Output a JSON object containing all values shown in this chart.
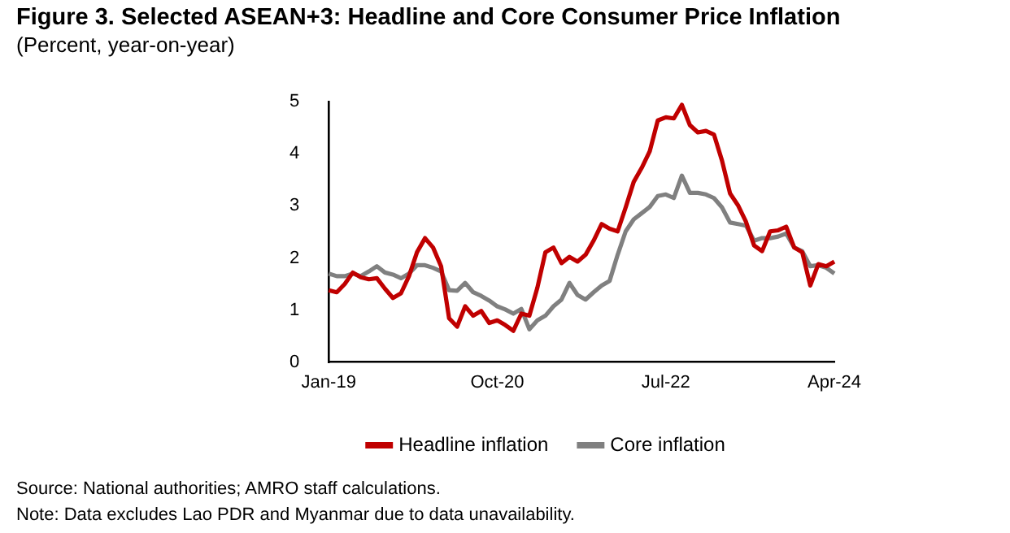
{
  "chart_data": {
    "type": "line",
    "title": "Figure 3. Selected ASEAN+3: Headline and Core Consumer Price Inflation",
    "subtitle": "(Percent, year-on-year)",
    "categories": [
      "Jan-19",
      null,
      null,
      null,
      null,
      null,
      null,
      null,
      null,
      null,
      null,
      null,
      null,
      null,
      null,
      null,
      null,
      null,
      null,
      null,
      null,
      "Oct-20",
      null,
      null,
      null,
      null,
      null,
      null,
      null,
      null,
      null,
      null,
      null,
      null,
      null,
      null,
      null,
      null,
      null,
      null,
      null,
      null,
      "Jul-22",
      null,
      null,
      null,
      null,
      null,
      null,
      null,
      null,
      null,
      null,
      null,
      null,
      null,
      null,
      null,
      null,
      null,
      null,
      null,
      null,
      "Apr-24"
    ],
    "series": [
      {
        "name": "Headline inflation",
        "color": "#c00000",
        "values": [
          1.38,
          1.34,
          1.5,
          1.72,
          1.63,
          1.59,
          1.61,
          1.41,
          1.23,
          1.32,
          1.65,
          2.11,
          2.38,
          2.2,
          1.84,
          0.84,
          0.68,
          1.07,
          0.89,
          0.98,
          0.75,
          0.8,
          0.71,
          0.6,
          0.93,
          0.89,
          1.43,
          2.11,
          2.2,
          1.9,
          2.02,
          1.93,
          2.06,
          2.33,
          2.65,
          2.56,
          2.51,
          2.97,
          3.46,
          3.73,
          4.05,
          4.64,
          4.7,
          4.68,
          4.94,
          4.55,
          4.41,
          4.44,
          4.37,
          3.87,
          3.24,
          3.01,
          2.69,
          2.24,
          2.13,
          2.51,
          2.53,
          2.6,
          2.2,
          2.11,
          1.47,
          1.88,
          1.84,
          1.93
        ]
      },
      {
        "name": "Core inflation",
        "color": "#808080",
        "values": [
          1.7,
          1.65,
          1.65,
          1.7,
          1.65,
          1.74,
          1.84,
          1.72,
          1.68,
          1.61,
          1.7,
          1.86,
          1.86,
          1.81,
          1.74,
          1.38,
          1.37,
          1.52,
          1.34,
          1.27,
          1.18,
          1.07,
          1.01,
          0.93,
          1.02,
          0.63,
          0.8,
          0.89,
          1.07,
          1.2,
          1.52,
          1.29,
          1.2,
          1.34,
          1.47,
          1.56,
          2.06,
          2.51,
          2.74,
          2.86,
          2.98,
          3.19,
          3.22,
          3.15,
          3.58,
          3.25,
          3.25,
          3.22,
          3.15,
          2.97,
          2.68,
          2.65,
          2.62,
          2.33,
          2.38,
          2.38,
          2.41,
          2.47,
          2.2,
          2.13,
          1.84,
          1.86,
          1.81,
          1.7
        ]
      }
    ],
    "ylim": [
      0,
      5
    ],
    "yticks": [
      0,
      1,
      2,
      3,
      4,
      5
    ],
    "grid": false,
    "legend": "bottom",
    "marker": "none",
    "line_style": "solid",
    "annotations": [
      "Source: National authorities; AMRO staff calculations.",
      "Note: Data excludes Lao PDR and Myanmar due to data unavailability."
    ]
  }
}
